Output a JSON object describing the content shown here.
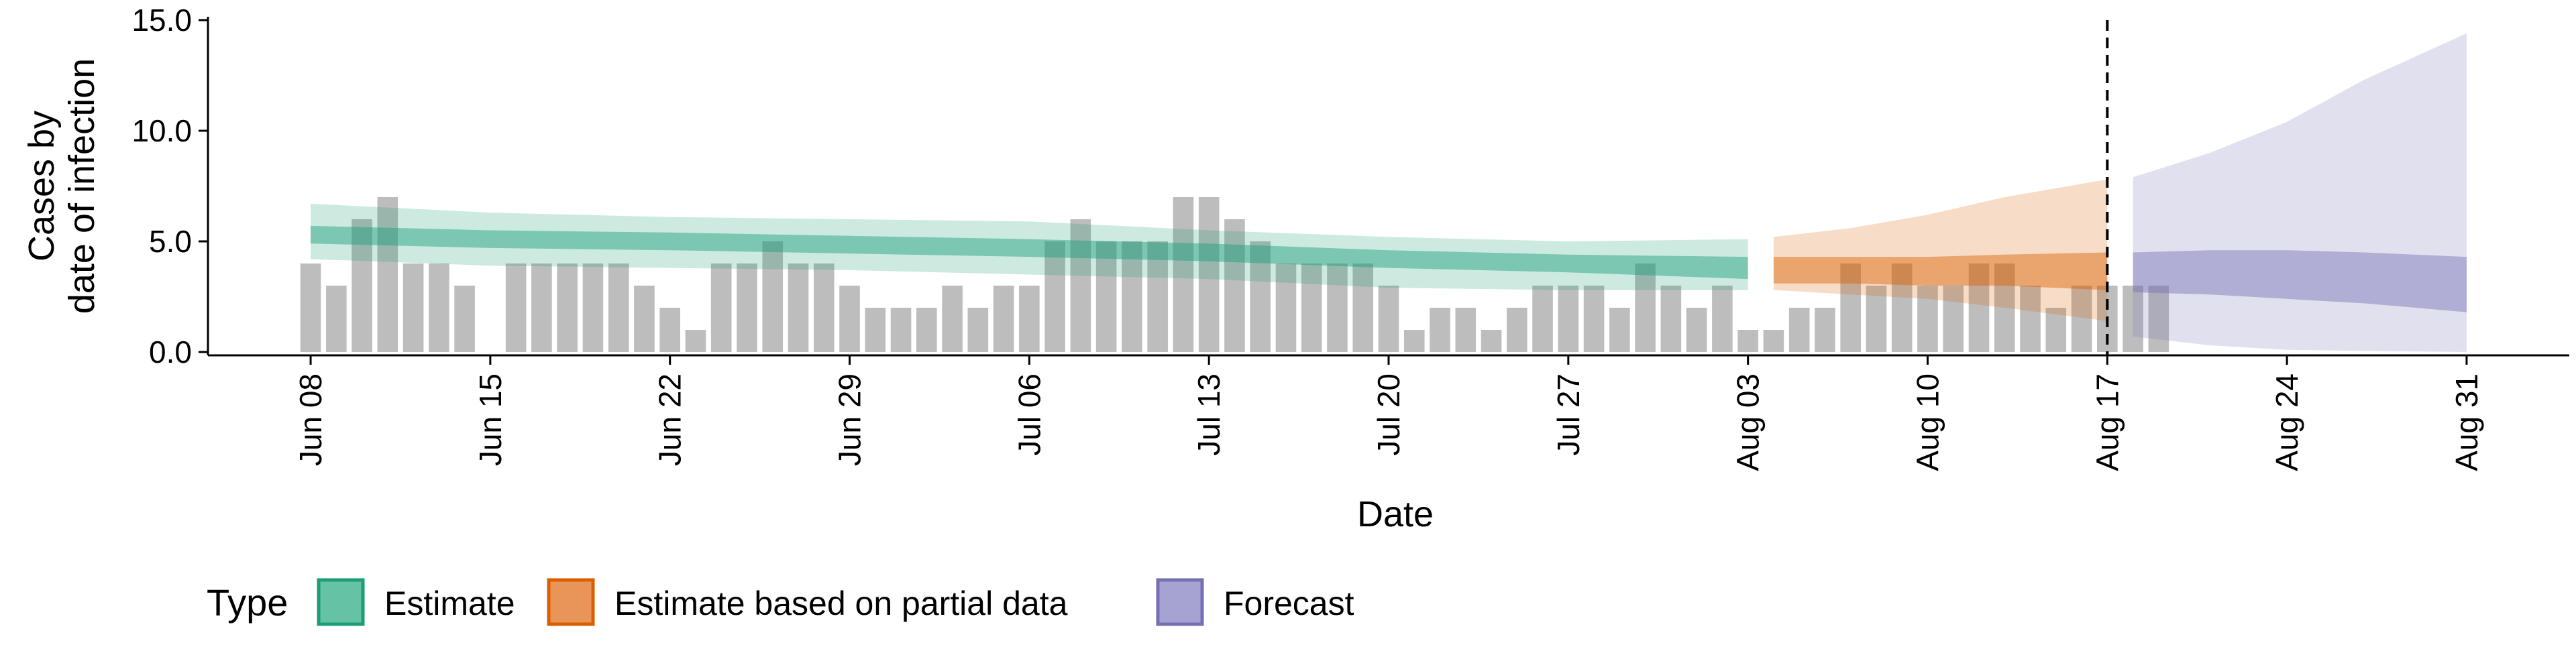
{
  "chart_data": {
    "type": "bar",
    "title": "",
    "xlabel": "Date",
    "ylabel": [
      "Cases by",
      "date of infection"
    ],
    "ylim": [
      0,
      15
    ],
    "yticks": [
      "0.0",
      "5.0",
      "10.0",
      "15.0"
    ],
    "xticks": [
      {
        "label": "Jun 08",
        "date": "2020-06-08"
      },
      {
        "label": "Jun 15",
        "date": "2020-06-15"
      },
      {
        "label": "Jun 22",
        "date": "2020-06-22"
      },
      {
        "label": "Jun 29",
        "date": "2020-06-29"
      },
      {
        "label": "Jul 06",
        "date": "2020-07-06"
      },
      {
        "label": "Jul 13",
        "date": "2020-07-13"
      },
      {
        "label": "Jul 20",
        "date": "2020-07-20"
      },
      {
        "label": "Jul 27",
        "date": "2020-07-27"
      },
      {
        "label": "Aug 03",
        "date": "2020-08-03"
      },
      {
        "label": "Aug 10",
        "date": "2020-08-10"
      },
      {
        "label": "Aug 17",
        "date": "2020-08-17"
      },
      {
        "label": "Aug 24",
        "date": "2020-08-24"
      },
      {
        "label": "Aug 31",
        "date": "2020-08-31"
      }
    ],
    "xlim": [
      "2020-06-04",
      "2020-09-04"
    ],
    "vline_date": "2020-08-17",
    "cases": {
      "start_date": "2020-06-08",
      "values": [
        4,
        3,
        6,
        7,
        4,
        4,
        3,
        0,
        4,
        4,
        4,
        4,
        4,
        3,
        2,
        1,
        4,
        4,
        5,
        4,
        4,
        3,
        2,
        2,
        2,
        3,
        2,
        3,
        3,
        5,
        6,
        5,
        5,
        5,
        7,
        7,
        6,
        5,
        4,
        4,
        4,
        4,
        3,
        1,
        2,
        2,
        1,
        2,
        3,
        3,
        3,
        2,
        4,
        3,
        2,
        3,
        1,
        1,
        2,
        2,
        4,
        3,
        4,
        3,
        3,
        4,
        4,
        3,
        2,
        3,
        3,
        3,
        3
      ],
      "color": "#bdbdbd"
    },
    "series": [
      {
        "name": "Estimate",
        "color": "#1b9e77",
        "dates": [
          "2020-06-08",
          "2020-06-15",
          "2020-06-22",
          "2020-06-29",
          "2020-07-06",
          "2020-07-13",
          "2020-07-20",
          "2020-07-27",
          "2020-08-03"
        ],
        "median": [
          5.3,
          5.1,
          5.0,
          4.85,
          4.7,
          4.5,
          4.2,
          4.0,
          3.8
        ],
        "lower50": [
          4.9,
          4.7,
          4.6,
          4.45,
          4.3,
          4.1,
          3.8,
          3.6,
          3.3
        ],
        "upper50": [
          5.7,
          5.5,
          5.4,
          5.25,
          5.1,
          4.9,
          4.6,
          4.4,
          4.3
        ],
        "lower90": [
          4.2,
          3.9,
          3.8,
          3.7,
          3.5,
          3.3,
          2.9,
          2.8,
          2.8
        ],
        "upper90": [
          6.7,
          6.3,
          6.1,
          6.0,
          5.9,
          5.5,
          5.2,
          5.0,
          5.1
        ]
      },
      {
        "name": "Estimate based on partial data",
        "color": "#d95f02",
        "dates": [
          "2020-08-04",
          "2020-08-07",
          "2020-08-10",
          "2020-08-13",
          "2020-08-17"
        ],
        "median": [
          3.7,
          3.7,
          3.7,
          3.8,
          3.7
        ],
        "lower50": [
          3.1,
          3.1,
          3.0,
          3.0,
          2.8
        ],
        "upper50": [
          4.3,
          4.3,
          4.3,
          4.4,
          4.5
        ],
        "lower90": [
          2.8,
          2.6,
          2.4,
          2.0,
          1.4
        ],
        "upper90": [
          5.2,
          5.6,
          6.2,
          7.0,
          7.8
        ]
      },
      {
        "name": "Forecast",
        "color": "#7570b3",
        "dates": [
          "2020-08-18",
          "2020-08-21",
          "2020-08-24",
          "2020-08-27",
          "2020-08-31"
        ],
        "median": [
          3.6,
          3.6,
          3.6,
          3.5,
          3.1
        ],
        "lower50": [
          2.7,
          2.6,
          2.4,
          2.2,
          1.8
        ],
        "upper50": [
          4.5,
          4.6,
          4.6,
          4.5,
          4.3
        ],
        "lower90": [
          0.7,
          0.3,
          0.1,
          0.05,
          0.0
        ],
        "upper90": [
          7.9,
          9.0,
          10.4,
          12.3,
          14.4
        ]
      }
    ],
    "legend": {
      "title": "Type",
      "placement": "bottom-left",
      "items": [
        {
          "label": "Estimate",
          "fill": "#66c2a5",
          "stroke": "#1b9e77"
        },
        {
          "label": "Estimate based on partial data",
          "fill": "#e9955a",
          "stroke": "#d95f02"
        },
        {
          "label": "Forecast",
          "fill": "#a6a3d3",
          "stroke": "#7570b3"
        }
      ]
    },
    "grid": false
  }
}
